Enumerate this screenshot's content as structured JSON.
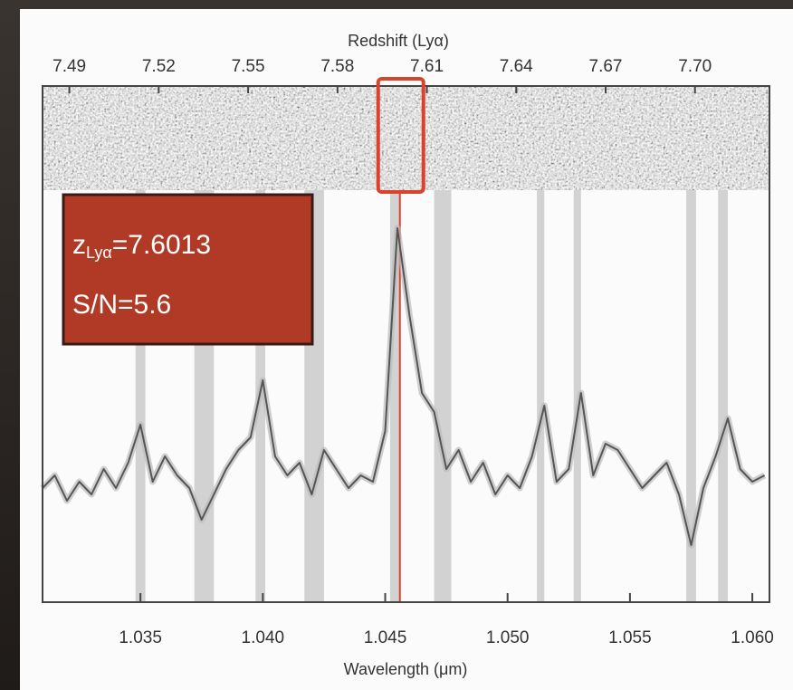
{
  "chart_data": {
    "type": "line",
    "x_label": "Wavelength (μm)",
    "x2_label": "Redshift (Lyα)",
    "redshift_label": {
      "symbol": "z",
      "subscript": "Lyα",
      "text": "=7.6013"
    },
    "snr_label": "S/N=5.6",
    "annotation_color": "#b13a27",
    "line_color": "#555555",
    "highlight_x": 1.0456,
    "highlight_color": "#d9432c",
    "sky_band_color": "#c8c8c8",
    "sky_bands": [
      [
        1.0348,
        1.0352
      ],
      [
        1.0372,
        1.038
      ],
      [
        1.0397,
        1.0401
      ],
      [
        1.0417,
        1.0425
      ],
      [
        1.0452,
        1.0456
      ],
      [
        1.047,
        1.0477
      ],
      [
        1.0512,
        1.0515
      ],
      [
        1.0527,
        1.053
      ],
      [
        1.0573,
        1.0577
      ],
      [
        1.0586,
        1.059
      ]
    ],
    "xlim": [
      1.031,
      1.0607
    ],
    "xticks": [
      1.035,
      {
        "value": 1.04,
        "label": "1.040"
      },
      1.045,
      {
        "value": 1.05,
        "label": "1.050"
      },
      1.055,
      {
        "value": 1.06,
        "label": "1.060"
      }
    ],
    "x2lim": [
      7.481,
      7.725
    ],
    "x2ticks": [
      7.49,
      7.52,
      7.55,
      7.58,
      7.61,
      7.64,
      7.67,
      {
        "value": 7.7,
        "label": "7.70"
      }
    ],
    "ylim": [
      -1.5,
      5
    ],
    "x": [
      1.031,
      1.0315,
      1.032,
      1.0325,
      1.033,
      1.0335,
      1.034,
      1.0345,
      1.035,
      1.0355,
      1.036,
      1.0365,
      1.037,
      1.0375,
      1.038,
      1.0385,
      1.039,
      1.0395,
      1.04,
      1.0405,
      1.041,
      1.0415,
      1.042,
      1.0425,
      1.043,
      1.0435,
      1.044,
      1.0445,
      1.045,
      1.0455,
      1.046,
      1.0465,
      1.047,
      1.0475,
      1.048,
      1.0485,
      1.049,
      1.0495,
      1.05,
      1.0505,
      1.051,
      1.0515,
      1.052,
      1.0525,
      1.053,
      1.0535,
      1.054,
      1.0545,
      1.055,
      1.0555,
      1.056,
      1.0565,
      1.057,
      1.0575,
      1.058,
      1.0585,
      1.059,
      1.0595,
      1.06,
      1.0605
    ],
    "values": [
      0.3,
      0.5,
      0.1,
      0.4,
      0.2,
      0.6,
      0.3,
      0.7,
      1.3,
      0.4,
      0.8,
      0.5,
      0.3,
      -0.2,
      0.2,
      0.6,
      0.9,
      1.1,
      2.0,
      0.8,
      0.5,
      0.7,
      0.2,
      0.9,
      0.6,
      0.3,
      0.5,
      0.4,
      1.2,
      4.4,
      3.0,
      1.8,
      1.5,
      0.6,
      0.9,
      0.4,
      0.7,
      0.2,
      0.5,
      0.3,
      0.8,
      1.6,
      0.4,
      0.6,
      1.8,
      0.5,
      1.0,
      0.9,
      0.6,
      0.3,
      0.5,
      0.7,
      0.2,
      -0.6,
      0.3,
      0.8,
      1.4,
      0.6,
      0.4,
      0.5
    ]
  }
}
